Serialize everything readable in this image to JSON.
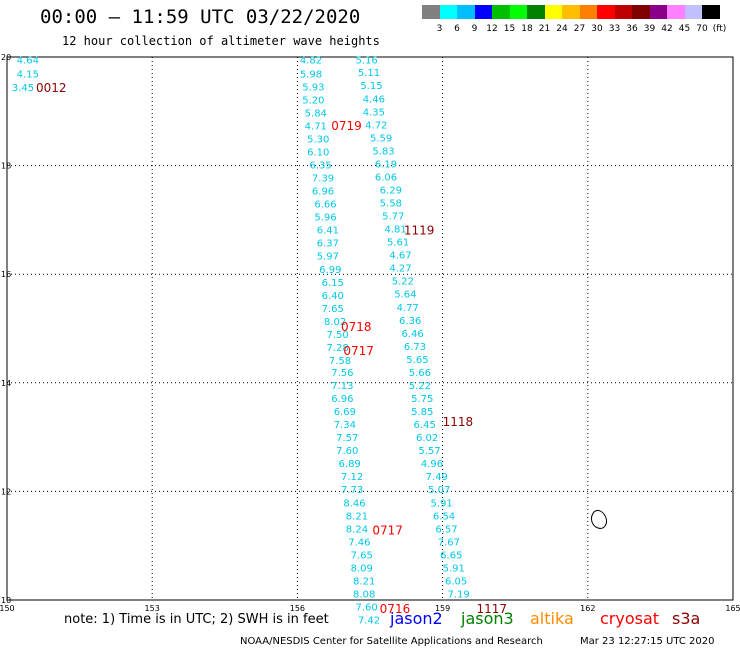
{
  "header": {
    "title": "00:00 – 11:59 UTC 03/22/2020",
    "subtitle": "12 hour collection of altimeter wave heights"
  },
  "colorbar": {
    "colors": [
      "#808080",
      "#00ffff",
      "#00bfff",
      "#0000ff",
      "#00bf00",
      "#00ff00",
      "#008000",
      "#ffff00",
      "#ffbf00",
      "#ff8000",
      "#ff0000",
      "#bf0000",
      "#800000",
      "#8b008b",
      "#ff80ff",
      "#c0c0ff",
      "#000000"
    ],
    "labels": [
      "3",
      "6",
      "9",
      "12",
      "15",
      "18",
      "21",
      "24",
      "27",
      "30",
      "33",
      "36",
      "39",
      "42",
      "45",
      "70",
      "(ft)"
    ]
  },
  "axes": {
    "lon_ticks": [
      "150",
      "153",
      "156",
      "159",
      "162",
      "165"
    ],
    "lat_ticks": [
      "20",
      "18",
      "16",
      "14",
      "12",
      "10"
    ],
    "lon_range": [
      150,
      165
    ],
    "lat_range": [
      10,
      20
    ]
  },
  "wave_heights": {
    "track_far_left": [
      {
        "lon": 150.2,
        "lat": 19.95,
        "v": "4.64"
      },
      {
        "lon": 150.2,
        "lat": 19.7,
        "v": "4.15"
      },
      {
        "lon": 150.1,
        "lat": 19.45,
        "v": "3.45"
      }
    ],
    "track_0719": [
      {
        "lon": 156.05,
        "lat": 19.95,
        "v": "4.82"
      },
      {
        "lon": 156.05,
        "lat": 19.7,
        "v": "5.98"
      },
      {
        "lon": 156.1,
        "lat": 19.46,
        "v": "5.93"
      },
      {
        "lon": 156.1,
        "lat": 19.22,
        "v": "5.20"
      },
      {
        "lon": 156.15,
        "lat": 18.98,
        "v": "5.84"
      },
      {
        "lon": 156.15,
        "lat": 18.74,
        "v": "4.71"
      },
      {
        "lon": 156.2,
        "lat": 18.5,
        "v": "5.30"
      },
      {
        "lon": 156.2,
        "lat": 18.26,
        "v": "6.10"
      },
      {
        "lon": 156.25,
        "lat": 18.02,
        "v": "6.35"
      },
      {
        "lon": 156.3,
        "lat": 17.78,
        "v": "7.39"
      },
      {
        "lon": 156.3,
        "lat": 17.54,
        "v": "6.96"
      },
      {
        "lon": 156.35,
        "lat": 17.3,
        "v": "6.66"
      },
      {
        "lon": 156.35,
        "lat": 17.06,
        "v": "5.96"
      },
      {
        "lon": 156.4,
        "lat": 16.82,
        "v": "6.41"
      },
      {
        "lon": 156.4,
        "lat": 16.58,
        "v": "6.37"
      },
      {
        "lon": 156.4,
        "lat": 16.34,
        "v": "5.97"
      },
      {
        "lon": 156.45,
        "lat": 16.1,
        "v": "6.99"
      },
      {
        "lon": 156.5,
        "lat": 15.86,
        "v": "6.15"
      },
      {
        "lon": 156.5,
        "lat": 15.62,
        "v": "6.40"
      },
      {
        "lon": 156.5,
        "lat": 15.38,
        "v": "7.65"
      },
      {
        "lon": 156.55,
        "lat": 15.14,
        "v": "8.02"
      },
      {
        "lon": 156.6,
        "lat": 14.9,
        "v": "7.50"
      },
      {
        "lon": 156.6,
        "lat": 14.66,
        "v": "7.28"
      },
      {
        "lon": 156.65,
        "lat": 14.42,
        "v": "7.58"
      },
      {
        "lon": 156.7,
        "lat": 14.2,
        "v": "7.56"
      },
      {
        "lon": 156.7,
        "lat": 13.96,
        "v": "7.13"
      },
      {
        "lon": 156.7,
        "lat": 13.72,
        "v": "6.96"
      },
      {
        "lon": 156.75,
        "lat": 13.48,
        "v": "6.69"
      },
      {
        "lon": 156.75,
        "lat": 13.24,
        "v": "7.34"
      },
      {
        "lon": 156.8,
        "lat": 13.0,
        "v": "7.57"
      },
      {
        "lon": 156.8,
        "lat": 12.76,
        "v": "7.60"
      },
      {
        "lon": 156.85,
        "lat": 12.52,
        "v": "6.89"
      },
      {
        "lon": 156.9,
        "lat": 12.28,
        "v": "7.12"
      },
      {
        "lon": 156.9,
        "lat": 12.04,
        "v": "7.73"
      },
      {
        "lon": 156.95,
        "lat": 11.8,
        "v": "8.46"
      },
      {
        "lon": 157.0,
        "lat": 11.56,
        "v": "8.21"
      },
      {
        "lon": 157.0,
        "lat": 11.32,
        "v": "8.24"
      },
      {
        "lon": 157.05,
        "lat": 11.08,
        "v": "7.46"
      },
      {
        "lon": 157.1,
        "lat": 10.84,
        "v": "7.65"
      },
      {
        "lon": 157.1,
        "lat": 10.6,
        "v": "8.09"
      },
      {
        "lon": 157.15,
        "lat": 10.36,
        "v": "8.21"
      },
      {
        "lon": 157.15,
        "lat": 10.12,
        "v": "8.08"
      },
      {
        "lon": 157.2,
        "lat": 9.88,
        "v": "7.60"
      },
      {
        "lon": 157.25,
        "lat": 9.64,
        "v": "7.42"
      }
    ],
    "track_1119": [
      {
        "lon": 157.2,
        "lat": 19.95,
        "v": "5.16"
      },
      {
        "lon": 157.25,
        "lat": 19.72,
        "v": "5.11"
      },
      {
        "lon": 157.3,
        "lat": 19.48,
        "v": "5.15"
      },
      {
        "lon": 157.35,
        "lat": 19.24,
        "v": "4.46"
      },
      {
        "lon": 157.35,
        "lat": 19.0,
        "v": "4.35"
      },
      {
        "lon": 157.4,
        "lat": 18.76,
        "v": "4.72"
      },
      {
        "lon": 157.5,
        "lat": 18.52,
        "v": "5.59"
      },
      {
        "lon": 157.55,
        "lat": 18.28,
        "v": "5.83"
      },
      {
        "lon": 157.6,
        "lat": 18.04,
        "v": "6.19"
      },
      {
        "lon": 157.6,
        "lat": 17.8,
        "v": "6.06"
      },
      {
        "lon": 157.7,
        "lat": 17.56,
        "v": "6.29"
      },
      {
        "lon": 157.7,
        "lat": 17.32,
        "v": "5.58"
      },
      {
        "lon": 157.75,
        "lat": 17.08,
        "v": "5.77"
      },
      {
        "lon": 157.8,
        "lat": 16.84,
        "v": "4.81"
      },
      {
        "lon": 157.85,
        "lat": 16.6,
        "v": "5.61"
      },
      {
        "lon": 157.9,
        "lat": 16.36,
        "v": "4.67"
      },
      {
        "lon": 157.9,
        "lat": 16.12,
        "v": "4.27"
      },
      {
        "lon": 157.95,
        "lat": 15.88,
        "v": "5.22"
      },
      {
        "lon": 158.0,
        "lat": 15.64,
        "v": "5.64"
      },
      {
        "lon": 158.05,
        "lat": 15.4,
        "v": "4.77"
      },
      {
        "lon": 158.1,
        "lat": 15.16,
        "v": "6.36"
      },
      {
        "lon": 158.15,
        "lat": 14.92,
        "v": "6.46"
      },
      {
        "lon": 158.2,
        "lat": 14.68,
        "v": "6.73"
      },
      {
        "lon": 158.25,
        "lat": 14.44,
        "v": "5.65"
      },
      {
        "lon": 158.3,
        "lat": 14.2,
        "v": "5.66"
      },
      {
        "lon": 158.3,
        "lat": 13.96,
        "v": "5.22"
      },
      {
        "lon": 158.35,
        "lat": 13.72,
        "v": "5.75"
      },
      {
        "lon": 158.35,
        "lat": 13.48,
        "v": "5.85"
      },
      {
        "lon": 158.4,
        "lat": 13.24,
        "v": "6.45"
      },
      {
        "lon": 158.45,
        "lat": 13.0,
        "v": "6.02"
      },
      {
        "lon": 158.5,
        "lat": 12.76,
        "v": "5.57"
      },
      {
        "lon": 158.55,
        "lat": 12.52,
        "v": "4.96"
      },
      {
        "lon": 158.65,
        "lat": 12.28,
        "v": "7.49"
      },
      {
        "lon": 158.7,
        "lat": 12.04,
        "v": "5.07"
      },
      {
        "lon": 158.75,
        "lat": 11.8,
        "v": "5.91"
      },
      {
        "lon": 158.8,
        "lat": 11.56,
        "v": "6.54"
      },
      {
        "lon": 158.85,
        "lat": 11.32,
        "v": "6.57"
      },
      {
        "lon": 158.9,
        "lat": 11.08,
        "v": "7.67"
      },
      {
        "lon": 158.95,
        "lat": 10.84,
        "v": "6.65"
      },
      {
        "lon": 159.0,
        "lat": 10.6,
        "v": "5.91"
      },
      {
        "lon": 159.05,
        "lat": 10.36,
        "v": "6.05"
      },
      {
        "lon": 159.1,
        "lat": 10.12,
        "v": "7.19"
      }
    ]
  },
  "pass_times": [
    {
      "lon": 150.6,
      "lat": 19.45,
      "t": "0012",
      "color": "#8b0000"
    },
    {
      "lon": 156.7,
      "lat": 18.75,
      "t": "0719",
      "color": "#ff0000"
    },
    {
      "lon": 158.2,
      "lat": 16.82,
      "t": "1119",
      "color": "#8b0000"
    },
    {
      "lon": 156.9,
      "lat": 15.05,
      "t": "0718",
      "color": "#ff0000"
    },
    {
      "lon": 156.95,
      "lat": 14.6,
      "t": "0717",
      "color": "#ff0000"
    },
    {
      "lon": 159.0,
      "lat": 13.3,
      "t": "1118",
      "color": "#8b0000"
    },
    {
      "lon": 157.55,
      "lat": 11.3,
      "t": "0717",
      "color": "#ff0000"
    },
    {
      "lon": 157.7,
      "lat": 9.85,
      "t": "0716",
      "color": "#ff0000"
    },
    {
      "lon": 159.7,
      "lat": 9.85,
      "t": "1117",
      "color": "#8b0000"
    }
  ],
  "footer": {
    "note": "note: 1) Time is in UTC; 2) SWH is in feet",
    "satellites": [
      {
        "name": "jason2",
        "color": "#0000ff"
      },
      {
        "name": "jason3",
        "color": "#008000"
      },
      {
        "name": "altika",
        "color": "#ff8c00"
      },
      {
        "name": "cryosat",
        "color": "#ff0000"
      },
      {
        "name": "s3a",
        "color": "#8b0000"
      }
    ],
    "credit": "NOAA/NESDIS Center for Satellite Applications and Research",
    "timestamp": "Mar 23 12:27:15 UTC 2020"
  },
  "colors": {
    "wave_text": "#00c8e6",
    "grid": "#000000"
  }
}
